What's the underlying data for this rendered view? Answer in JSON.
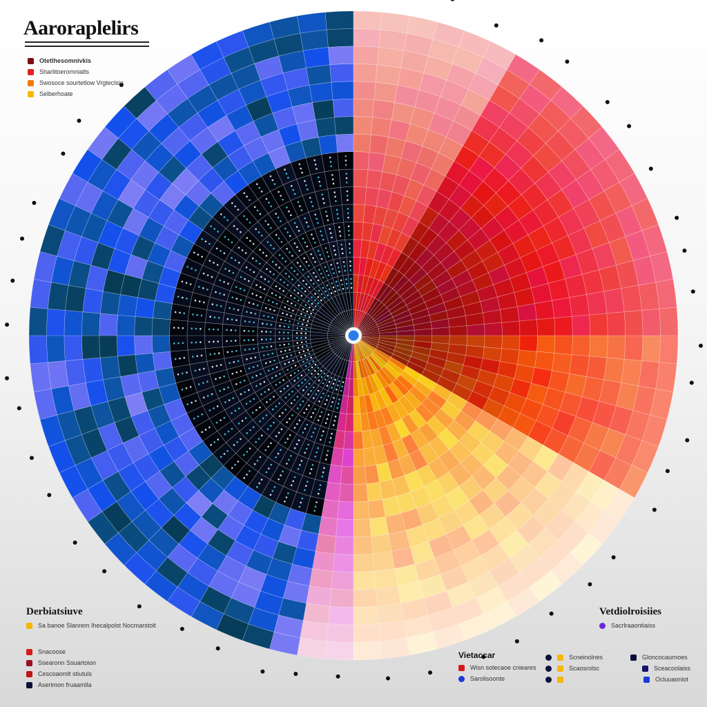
{
  "title": "Aaroraplelirs",
  "legend_top": {
    "heading": "Otetlhesomnivkis",
    "items": [
      "Sharlitoeromnialts",
      "Swosoce sourtetlow  Vrgteclsie",
      "Selberhoate"
    ]
  },
  "legend_bottom_left": {
    "heading": "Derbiatsiuve",
    "items": [
      "Sa banoe Slanrem Ihecalpolst Nocmarstolt",
      "Snacoose",
      "Ssearonn Ssuartoion",
      "Cescoaomlt stiutuls",
      "Aserimon fruaamlla"
    ]
  },
  "legend_bottom_center": {
    "heading": "Vietaccar",
    "items": [
      "Wisn sotecaoe cnieares",
      "Sarolisoonte"
    ]
  },
  "legend_bottom_right": {
    "heading": "Vetdiolroisiies",
    "items": [
      "Sacrlraaontiaiss",
      "Scneinolnes",
      "Gloncocaurnoes",
      "Scaosrolsc",
      "Sceacoolaiss",
      "Ocluuaoniot"
    ]
  }
}
